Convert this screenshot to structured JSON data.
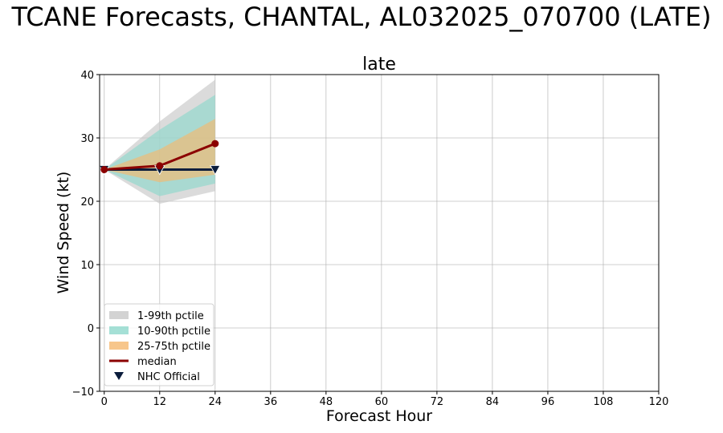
{
  "chart_data": {
    "type": "line",
    "suptitle": "TCANE Forecasts, CHANTAL, AL032025_070700 (LATE)",
    "title": "late",
    "xlabel": "Forecast Hour",
    "ylabel": "Wind Speed (kt)",
    "xlim": [
      -1,
      120
    ],
    "ylim": [
      -10,
      40
    ],
    "xticks": [
      0,
      12,
      24,
      36,
      48,
      60,
      72,
      84,
      96,
      108,
      120
    ],
    "yticks": [
      -10,
      0,
      10,
      20,
      30,
      40
    ],
    "grid": true,
    "legend_position": "lower-left",
    "x": [
      0,
      12,
      24
    ],
    "bands": [
      {
        "name": "1-99th pctile",
        "color": "#c8c8c8",
        "lower": [
          25,
          19.6,
          21.6
        ],
        "upper": [
          25,
          32.6,
          39.2
        ]
      },
      {
        "name": "10-90th pctile",
        "color": "#8fd8cc",
        "lower": [
          25,
          20.8,
          22.8
        ],
        "upper": [
          25,
          31.3,
          36.8
        ]
      },
      {
        "name": "25-75th pctile",
        "color": "#f5b86e",
        "lower": [
          25,
          23.0,
          24.2
        ],
        "upper": [
          25,
          28.2,
          33.0
        ]
      }
    ],
    "series": [
      {
        "name": "median",
        "color": "#8b0000",
        "marker": "circle",
        "values": [
          25,
          25.6,
          29.1
        ]
      },
      {
        "name": "NHC Official",
        "color": "#0b1d3c",
        "marker": "triangle-down",
        "values": [
          25,
          25,
          25
        ]
      }
    ]
  }
}
